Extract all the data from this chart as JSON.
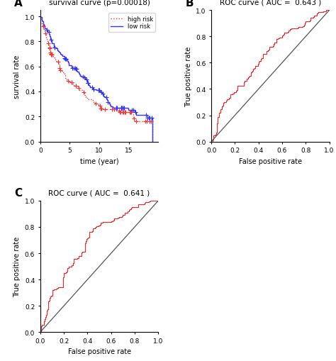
{
  "panel_A_title": "survival curve (p=0.00018)",
  "panel_B_title": "ROC curve ( AUC =  0.643 )",
  "panel_C_title": "ROC curve ( AUC =  0.641 )",
  "panel_A_xlabel": "time (year)",
  "panel_A_ylabel": "survival rate",
  "panel_BC_xlabel": "False positive rate",
  "panel_BC_ylabel": "True positive rate",
  "high_risk_color": "#FF3333",
  "low_risk_color": "#3333FF",
  "roc_color": "#FF2222",
  "diag_color": "#555555",
  "bg_color": "#ffffff",
  "panel_A_xlim": [
    0,
    20
  ],
  "panel_A_ylim": [
    0,
    1.05
  ],
  "panel_A_xticks": [
    0,
    5,
    10,
    15
  ],
  "panel_A_yticks": [
    0.0,
    0.2,
    0.4,
    0.6,
    0.8,
    1.0
  ],
  "panel_BC_xlim": [
    0,
    1.0
  ],
  "panel_BC_ylim": [
    0,
    1.0
  ],
  "panel_BC_xticks": [
    0.0,
    0.2,
    0.4,
    0.6,
    0.8,
    1.0
  ],
  "panel_BC_yticks": [
    0.0,
    0.2,
    0.4,
    0.6,
    0.8,
    1.0
  ],
  "legend_labels": [
    "high risk",
    "low risk"
  ],
  "title_fontsize": 7.5,
  "label_fontsize": 7,
  "tick_fontsize": 6.5,
  "legend_fontsize": 6
}
